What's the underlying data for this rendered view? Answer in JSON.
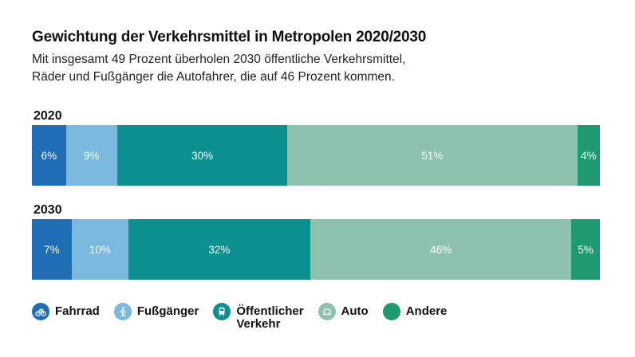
{
  "header": {
    "title": "Gewichtung der Verkehrsmittel in Metropolen 2020/2030",
    "subtitle_line1": "Mit insgesamt 49 Prozent überholen 2030 öffentliche Verkehrsmittel,",
    "subtitle_line2": "Räder und Fußgänger die Autofahrer, die auf 46 Prozent kommen."
  },
  "colors": {
    "fahrrad": "#1f6db5",
    "fussgaenger": "#7ab8dd",
    "oeffentlicher_verkehr": "#0c8f8f",
    "auto": "#8cc2ae",
    "andere": "#1f9a70"
  },
  "chart_data": {
    "type": "bar",
    "orientation": "horizontal-stacked-100",
    "categories": [
      "2020",
      "2030"
    ],
    "series": [
      {
        "name": "Fahrrad",
        "values": [
          6,
          7
        ],
        "labels": [
          "6%",
          "7%"
        ],
        "color": "#1f6db5",
        "icon": "bicycle-icon"
      },
      {
        "name": "Fußgänger",
        "values": [
          9,
          10
        ],
        "labels": [
          "9%",
          "10%"
        ],
        "color": "#7ab8dd",
        "icon": "pedestrian-icon"
      },
      {
        "name": "Öffentlicher Verkehr",
        "values": [
          30,
          32
        ],
        "labels": [
          "30%",
          "32%"
        ],
        "color": "#0c8f8f",
        "icon": "train-icon"
      },
      {
        "name": "Auto",
        "values": [
          51,
          46
        ],
        "labels": [
          "51%",
          "46%"
        ],
        "color": "#8cc2ae",
        "icon": "car-icon"
      },
      {
        "name": "Andere",
        "values": [
          4,
          5
        ],
        "labels": [
          "4%",
          "5%"
        ],
        "color": "#1f9a70",
        "icon": "circle-icon"
      }
    ],
    "xlim": [
      0,
      100
    ]
  },
  "legend": {
    "fahrrad": "Fahrrad",
    "fussgaenger": "Fußgänger",
    "oeffentlich_line1": "Öffentlicher",
    "oeffentlich_line2": "Verkehr",
    "auto": "Auto",
    "andere": "Andere"
  }
}
